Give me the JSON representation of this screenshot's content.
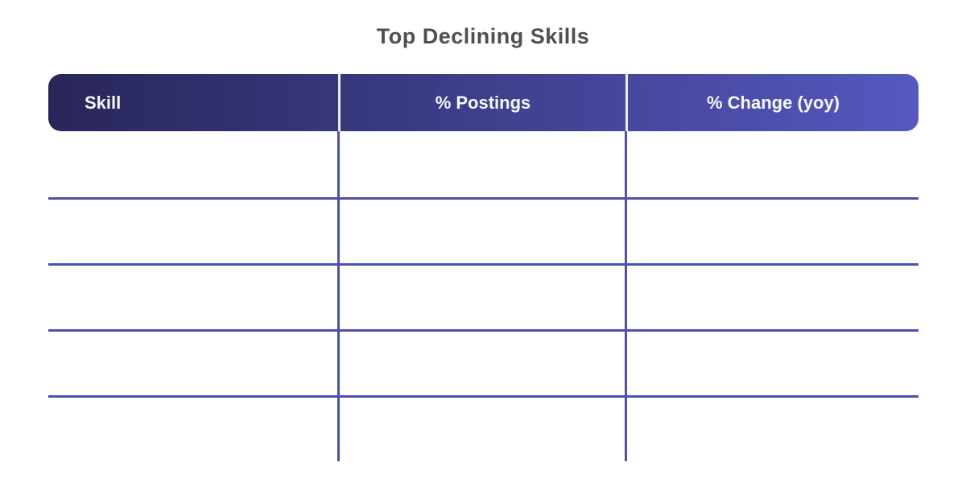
{
  "page": {
    "title": "Top Declining Skills"
  },
  "table": {
    "columns": [
      {
        "label": "Skill",
        "align": "left"
      },
      {
        "label": "% Postings",
        "align": "center"
      },
      {
        "label": "% Change (yoy)",
        "align": "center"
      }
    ],
    "rows": [
      [
        "",
        "",
        ""
      ],
      [
        "",
        "",
        ""
      ],
      [
        "",
        "",
        ""
      ],
      [
        "",
        "",
        ""
      ],
      [
        "",
        "",
        ""
      ]
    ]
  },
  "chart_data": {
    "type": "table",
    "title": "Top Declining Skills",
    "columns": [
      "Skill",
      "% Postings",
      "% Change (yoy)"
    ],
    "rows": [
      [
        "",
        "",
        ""
      ],
      [
        "",
        "",
        ""
      ],
      [
        "",
        "",
        ""
      ],
      [
        "",
        "",
        ""
      ],
      [
        "",
        "",
        ""
      ]
    ],
    "notes": "table body rendered empty in screenshot; grid lines only"
  },
  "theme": {
    "header_gradient_start": "#282659",
    "header_gradient_end": "#5558BF",
    "header_text_color": "#F7F7FD",
    "header_divider_color": "#EDEDF8",
    "grid_line_color": "#4D4FB3",
    "title_color": "#4F4F4F",
    "background_color": "#FFFFFF"
  }
}
